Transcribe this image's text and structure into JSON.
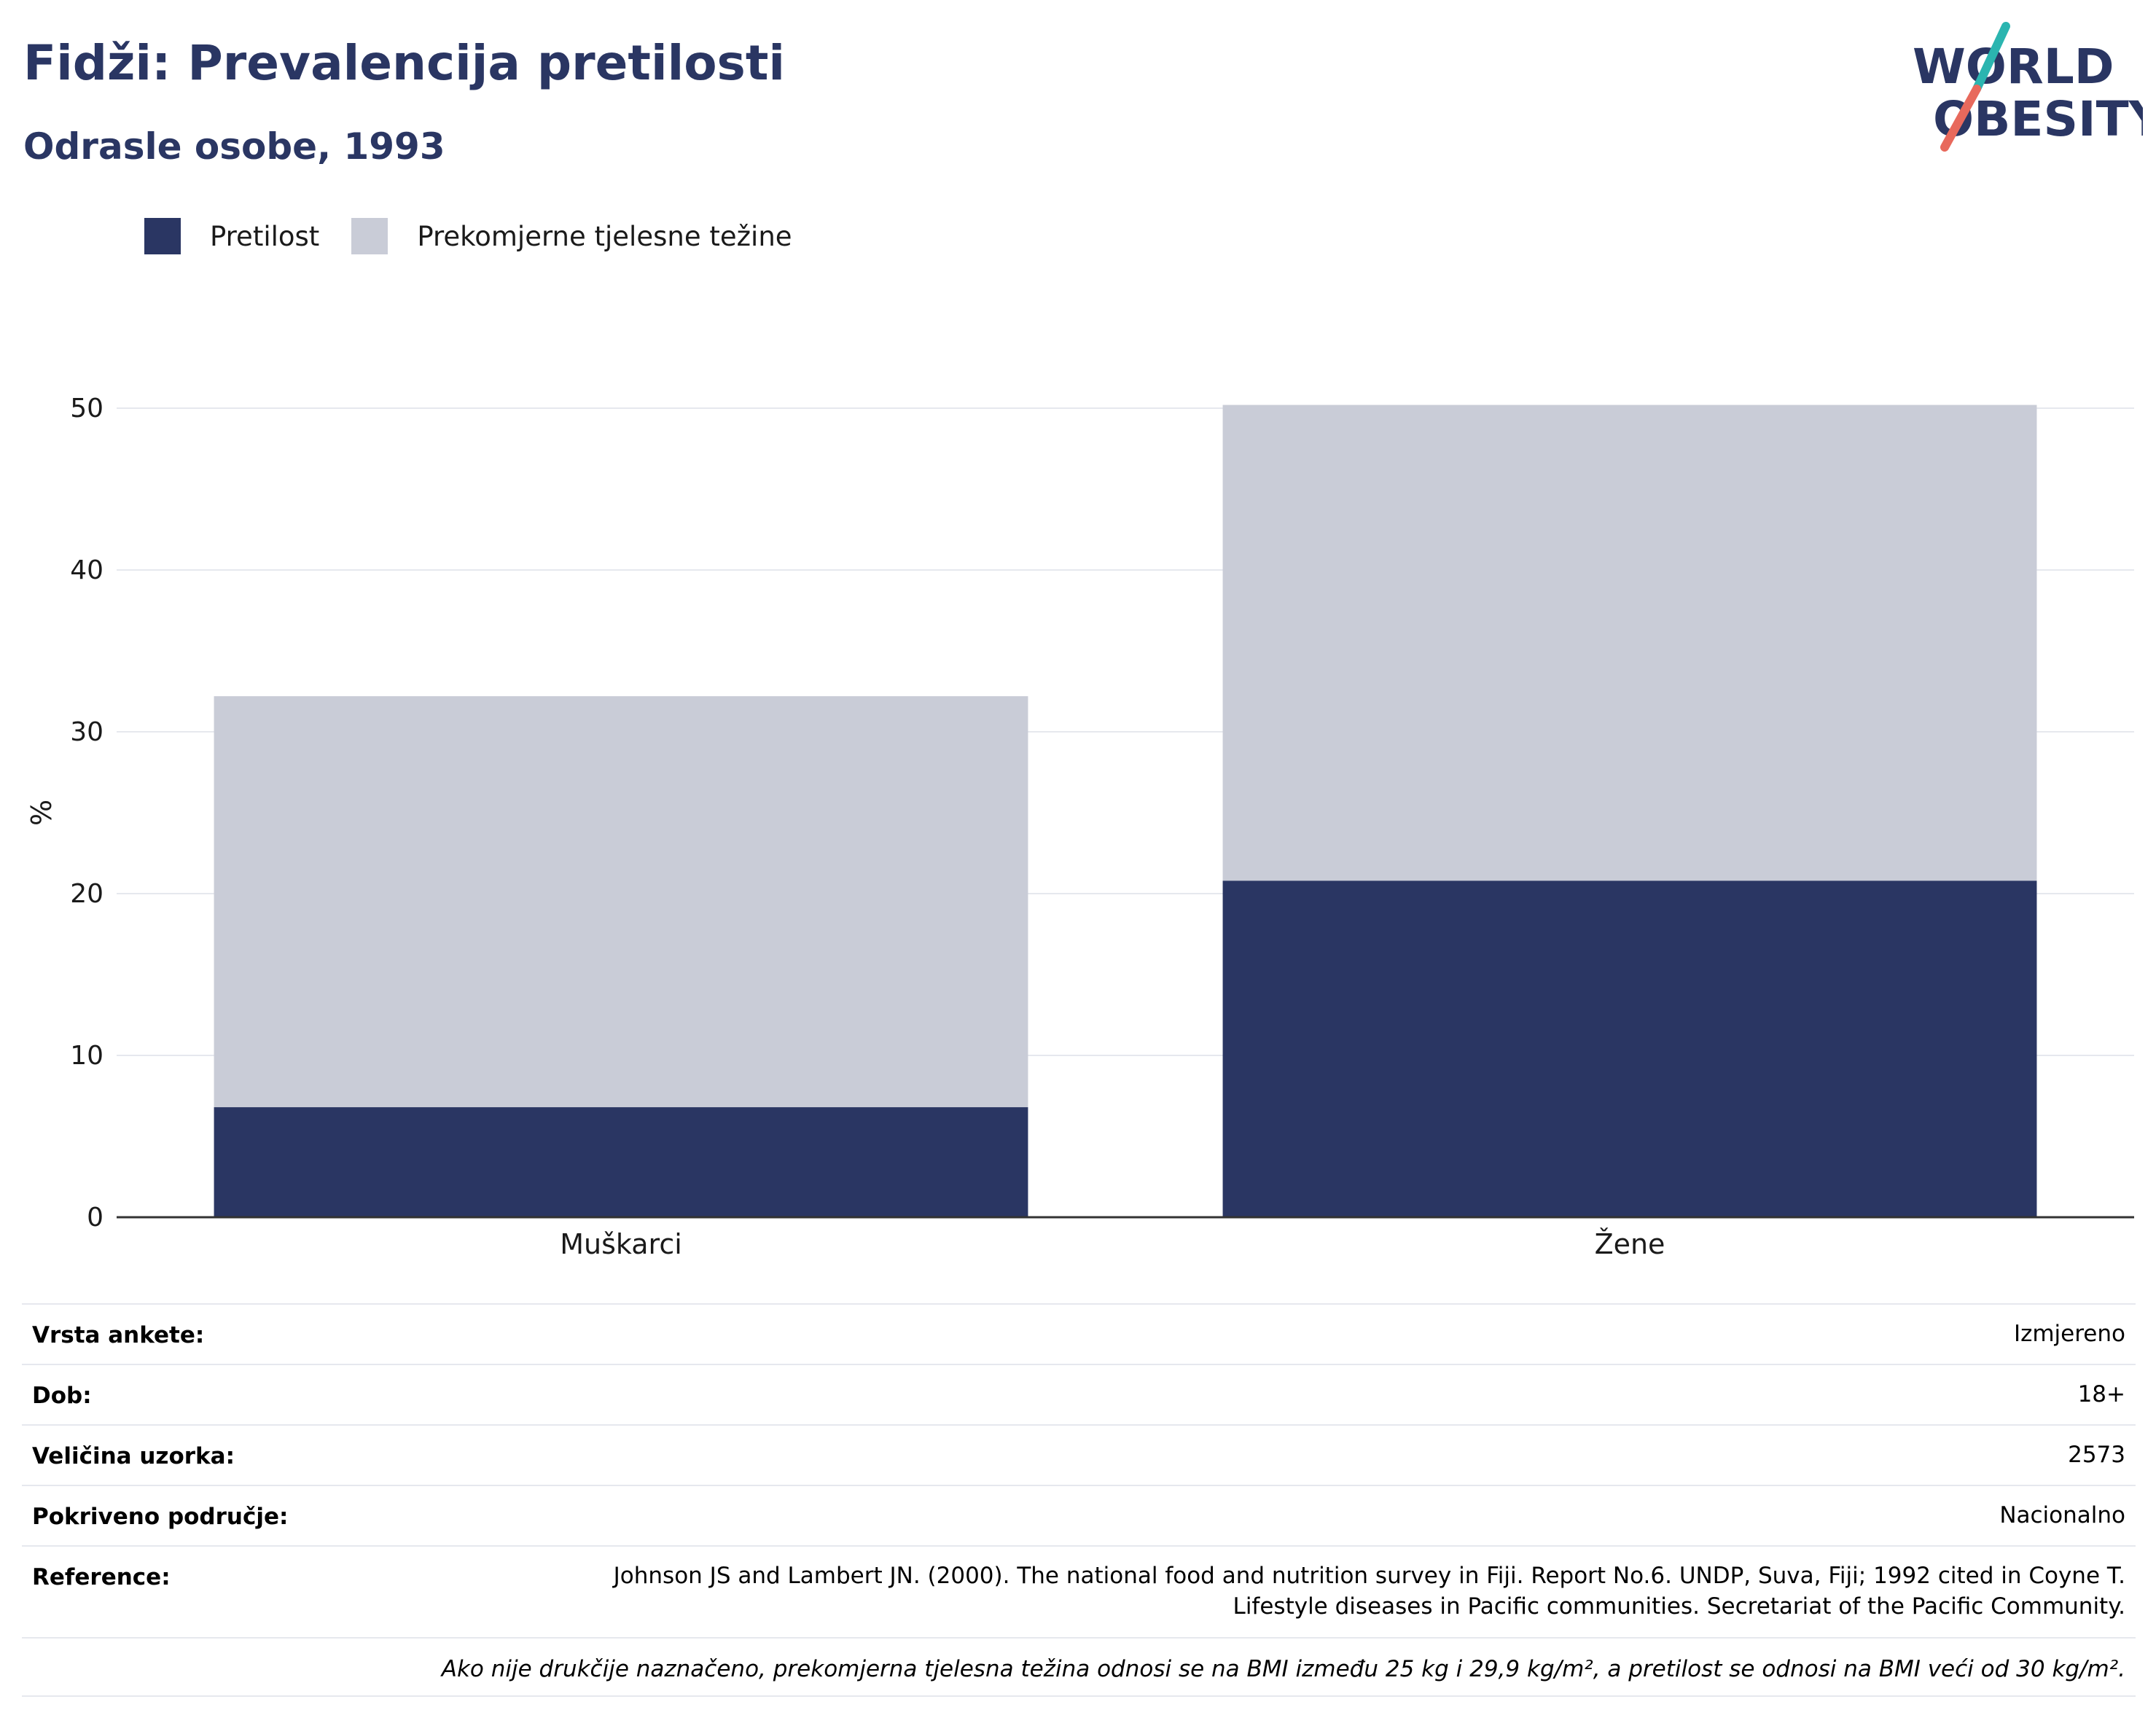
{
  "title": "Fidži: Prevalencija pretilosti",
  "subtitle": "Odrasle osobe, 1993",
  "logo": {
    "line1": "WORLD",
    "line2": "OBESITY",
    "slash_top_color": "#2bb5b0",
    "slash_bottom_color": "#e8695c"
  },
  "colors": {
    "obesity": "#2a3663",
    "overweight": "#c9ccd7",
    "text_dark": "#2a3663"
  },
  "legend": [
    {
      "label": "Pretilost",
      "color": "#2a3663"
    },
    {
      "label": "Prekomjerne tjelesne težine",
      "color": "#c9ccd7"
    }
  ],
  "chart_data": {
    "type": "bar",
    "stacked": true,
    "categories": [
      "Muškarci",
      "Žene"
    ],
    "series": [
      {
        "name": "Pretilost",
        "values": [
          6.8,
          20.8
        ]
      },
      {
        "name": "Prekomjerne tjelesne težine",
        "values": [
          25.4,
          29.4
        ]
      }
    ],
    "ylabel": "%",
    "ylim": [
      0,
      50
    ],
    "yticks": [
      0,
      10,
      20,
      30,
      40,
      50
    ],
    "grid": true,
    "legend_position": "top-left"
  },
  "info": [
    {
      "label": "Vrsta ankete:",
      "value": "Izmjereno"
    },
    {
      "label": "Dob:",
      "value": "18+"
    },
    {
      "label": "Veličina uzorka:",
      "value": "2573"
    },
    {
      "label": "Pokriveno područje:",
      "value": "Nacionalno"
    },
    {
      "label": "Reference:",
      "value_line1": "Johnson JS and Lambert JN. (2000). The national food and nutrition survey in Fiji. Report No.6. UNDP, Suva, Fiji; 1992 cited in Coyne T.",
      "value_line2": "Lifestyle diseases in Pacific communities. Secretariat of the Pacific Community."
    }
  ],
  "note": "Ako nije drukčije naznačeno, prekomjerna tjelesna težina odnosi se na BMI između 25 kg i 29,9 kg/m², a pretilost se odnosi na BMI veći od 30 kg/m²."
}
